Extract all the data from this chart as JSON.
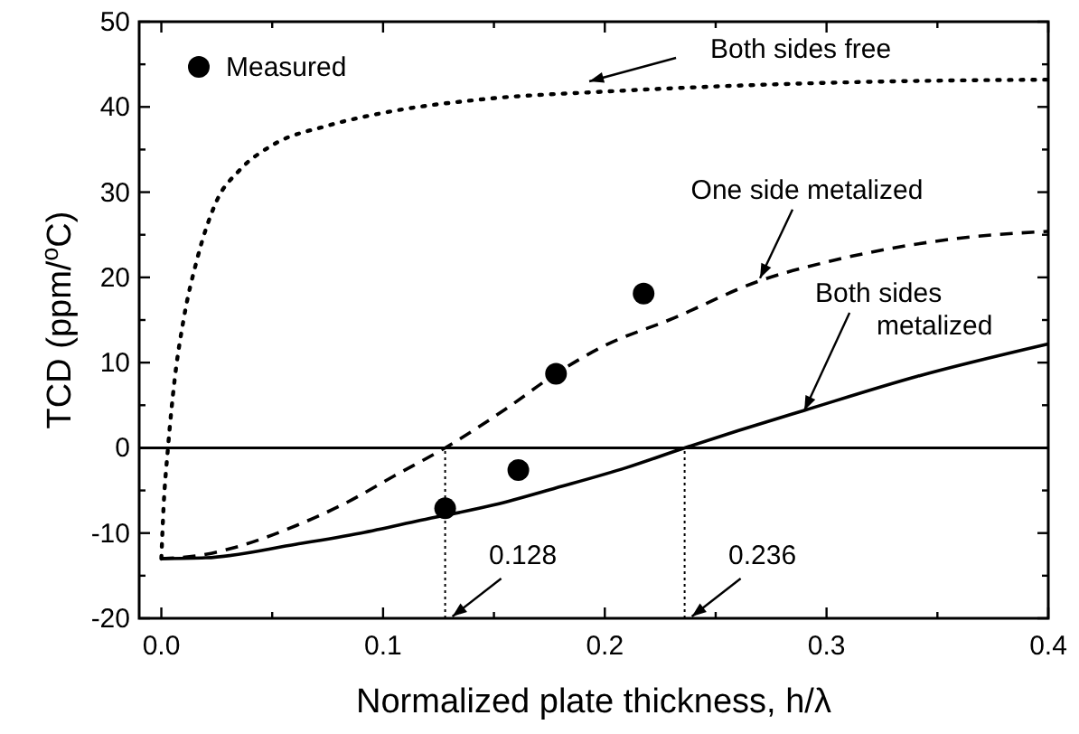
{
  "chart_data": {
    "type": "line",
    "xlabel": "Normalized plate thickness, h/λ",
    "ylabel": "TCD (ppm/$^{o}$C)",
    "xlim": [
      -0.01,
      0.4
    ],
    "ylim": [
      -20,
      50
    ],
    "xticks": [
      {
        "value": 0,
        "label": "0.0"
      },
      {
        "value": 0.05,
        "label": null
      },
      {
        "value": 0.1,
        "label": "0.1"
      },
      {
        "value": 0.15,
        "label": null
      },
      {
        "value": 0.2,
        "label": "0.2"
      },
      {
        "value": 0.25,
        "label": null
      },
      {
        "value": 0.3,
        "label": "0.3"
      },
      {
        "value": 0.35,
        "label": null
      },
      {
        "value": 0.4,
        "label": "0.4"
      }
    ],
    "yticks": [
      -20,
      {
        "value": -15,
        "label": null
      },
      -10,
      {
        "value": -5,
        "label": null
      },
      0,
      {
        "value": 5,
        "label": null
      },
      10,
      {
        "value": 15,
        "label": null
      },
      20,
      {
        "value": 25,
        "label": null
      },
      30,
      {
        "value": 35,
        "label": null
      },
      40,
      {
        "value": 45,
        "label": null
      },
      50
    ],
    "legend": "top left",
    "grid": false,
    "series": [
      {
        "color": "#000000",
        "line_style": "dotted",
        "marker": "none",
        "x": [
          0,
          0.001,
          0.003,
          0.006,
          0.01,
          0.016,
          0.025,
          0.035,
          0.05,
          0.075,
          0.1,
          0.145,
          0.2,
          0.26,
          0.33,
          0.4
        ],
        "values": [
          -13,
          -7,
          0,
          8,
          15,
          22,
          29,
          32.5,
          35.5,
          37.8,
          39.3,
          40.9,
          41.8,
          42.5,
          43,
          43.2
        ]
      },
      {
        "color": "#000000",
        "line_style": "dashed",
        "marker": "none",
        "x": [
          0,
          0.02,
          0.033,
          0.061,
          0.083,
          0.105,
          0.128,
          0.155,
          0.178,
          0.2,
          0.229,
          0.271,
          0.3,
          0.327,
          0.36,
          0.4
        ],
        "values": [
          -13,
          -12.5,
          -11.7,
          -9.1,
          -6.5,
          -3.3,
          0,
          4.5,
          8.7,
          12,
          15,
          19.7,
          21.8,
          23.3,
          24.6,
          25.4
        ]
      },
      {
        "color": "#000000",
        "line_style": "solid",
        "marker": "none",
        "x": [
          0,
          0.02,
          0.061,
          0.09,
          0.117,
          0.15,
          0.178,
          0.21,
          0.236,
          0.26,
          0.29,
          0.341,
          0.4
        ],
        "values": [
          -13,
          -12.9,
          -11.3,
          -10,
          -8.5,
          -6.7,
          -4.7,
          -2.3,
          0,
          2,
          4.4,
          8.4,
          12.2
        ]
      },
      {
        "type": "scatter",
        "name": "Measured",
        "color": "#000000",
        "marker": "circle",
        "x": [
          0.128,
          0.161,
          0.178,
          0.2175
        ],
        "values": [
          -7.1,
          -2.6,
          8.7,
          18.1
        ]
      }
    ],
    "ref_lines": [
      {
        "axis": "y",
        "value": 0,
        "line_style": "solid"
      },
      {
        "axis": "x",
        "value": 0.128,
        "label": "0.128",
        "line_style": "dotted"
      },
      {
        "axis": "x",
        "value": 0.236,
        "label": "0.236",
        "line_style": "dotted"
      }
    ],
    "annotations": [
      {
        "text": "Both sides free",
        "x": 0.193,
        "y": 43
      },
      {
        "text": "One side metalized",
        "x": 0.27,
        "y": 19.9
      },
      {
        "text": "Both sides metalized",
        "x": 0.29,
        "y": 4.4
      }
    ]
  }
}
